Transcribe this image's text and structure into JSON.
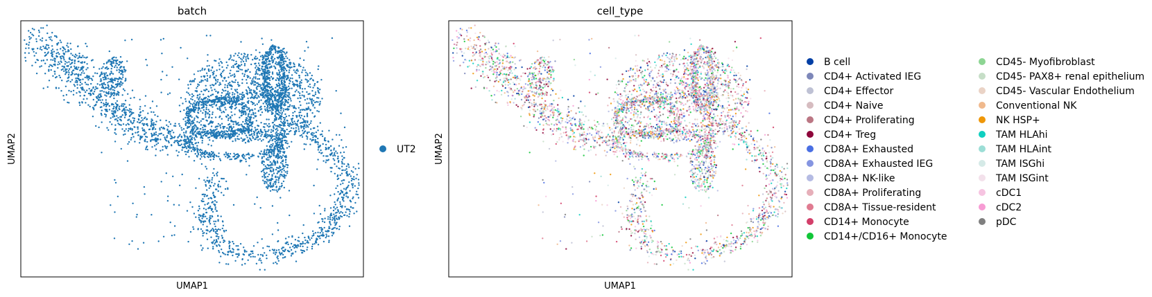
{
  "chart_data": [
    {
      "type": "scatter",
      "title": "batch",
      "xlabel": "UMAP1",
      "ylabel": "UMAP2",
      "legend": {
        "placement": "right",
        "entries": [
          {
            "name": "UT2",
            "color": "#1f77b4"
          }
        ]
      },
      "point_color": "#1f77b4",
      "xlim": [
        0,
        1
      ],
      "ylim": [
        0,
        1
      ],
      "ticks": "none",
      "grid": false
    },
    {
      "type": "scatter",
      "title": "cell_type",
      "xlabel": "UMAP1",
      "ylabel": "UMAP2",
      "xlim": [
        0,
        1
      ],
      "ylim": [
        0,
        1
      ],
      "ticks": "none",
      "grid": false,
      "legend": {
        "placement": "right",
        "columns": 2,
        "entries": [
          {
            "name": "B cell",
            "color": "#023fa5"
          },
          {
            "name": "CD4+ Activated IEG",
            "color": "#7d87b9"
          },
          {
            "name": "CD4+ Effector",
            "color": "#bec1d4"
          },
          {
            "name": "CD4+ Naive",
            "color": "#d6bcc0"
          },
          {
            "name": "CD4+ Proliferating",
            "color": "#bb7784"
          },
          {
            "name": "CD4+ Treg",
            "color": "#8e063b"
          },
          {
            "name": "CD8A+ Exhausted",
            "color": "#4a6fe3"
          },
          {
            "name": "CD8A+ Exhausted IEG",
            "color": "#8595e1"
          },
          {
            "name": "CD8A+ NK-like",
            "color": "#b5bbe3"
          },
          {
            "name": "CD8A+ Proliferating",
            "color": "#e6afb9"
          },
          {
            "name": "CD8A+ Tissue-resident",
            "color": "#e07b91"
          },
          {
            "name": "CD14+ Monocyte",
            "color": "#d33f6a"
          },
          {
            "name": "CD14+/CD16+ Monocyte",
            "color": "#11c638"
          },
          {
            "name": "CD45- Myofibroblast",
            "color": "#8dd593"
          },
          {
            "name": "CD45- PAX8+ renal epithelium",
            "color": "#c6dec7"
          },
          {
            "name": "CD45- Vascular Endothelium",
            "color": "#ead3c6"
          },
          {
            "name": "Conventional NK",
            "color": "#f0b98d"
          },
          {
            "name": "NK HSP+",
            "color": "#ef9708"
          },
          {
            "name": "TAM HLAhi",
            "color": "#0fcfc0"
          },
          {
            "name": "TAM HLAint",
            "color": "#9cded6"
          },
          {
            "name": "TAM ISGhi",
            "color": "#d5eae7"
          },
          {
            "name": "TAM ISGint",
            "color": "#f3e1eb"
          },
          {
            "name": "cDC1",
            "color": "#f6c4e1"
          },
          {
            "name": "cDC2",
            "color": "#f79cd4"
          },
          {
            "name": "pDC",
            "color": "#7f7f7f"
          }
        ]
      }
    }
  ]
}
